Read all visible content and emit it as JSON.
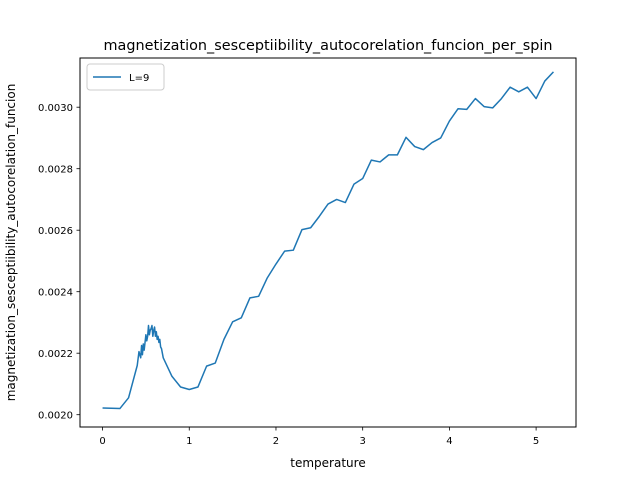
{
  "chart_data": {
    "type": "line",
    "title": "magnetization_sesceptiibility_autocorelation_funcion_per_spin",
    "xlabel": "temperature",
    "ylabel": "magnetization_sesceptiibility_autocorelation_funcion",
    "xlim": [
      -0.26,
      5.46
    ],
    "ylim": [
      0.00196,
      0.00316
    ],
    "xticks": [
      0,
      1,
      2,
      3,
      4,
      5
    ],
    "xtick_labels": [
      "0",
      "1",
      "2",
      "3",
      "4",
      "5"
    ],
    "yticks": [
      0.002,
      0.0022,
      0.0024,
      0.0026,
      0.0028,
      0.003
    ],
    "ytick_labels": [
      "0.0020",
      "0.0022",
      "0.0024",
      "0.0026",
      "0.0028",
      "0.0030"
    ],
    "grid": false,
    "legend_position": "upper-left",
    "series": [
      {
        "name": "L=9",
        "color": "#1f77b4",
        "x": [
          0.0,
          0.2,
          0.3,
          0.4,
          0.42,
          0.44,
          0.45,
          0.46,
          0.47,
          0.48,
          0.49,
          0.5,
          0.51,
          0.52,
          0.53,
          0.54,
          0.55,
          0.56,
          0.57,
          0.58,
          0.59,
          0.6,
          0.61,
          0.62,
          0.63,
          0.64,
          0.65,
          0.66,
          0.67,
          0.68,
          0.7,
          0.8,
          0.9,
          1.0,
          1.1,
          1.2,
          1.3,
          1.4,
          1.5,
          1.6,
          1.7,
          1.8,
          1.9,
          2.0,
          2.1,
          2.2,
          2.3,
          2.4,
          2.5,
          2.6,
          2.7,
          2.8,
          2.9,
          3.0,
          3.1,
          3.2,
          3.3,
          3.4,
          3.5,
          3.6,
          3.7,
          3.8,
          3.9,
          4.0,
          4.1,
          4.2,
          4.3,
          4.4,
          4.5,
          4.6,
          4.7,
          4.8,
          4.9,
          5.0,
          5.1,
          5.2
        ],
        "y": [
          0.002022,
          0.00202,
          0.002055,
          0.00216,
          0.002205,
          0.002185,
          0.002225,
          0.002195,
          0.00223,
          0.00221,
          0.002235,
          0.00226,
          0.00224,
          0.002255,
          0.00229,
          0.00226,
          0.002275,
          0.00228,
          0.00229,
          0.002255,
          0.002275,
          0.002285,
          0.002255,
          0.00227,
          0.002245,
          0.002255,
          0.002235,
          0.002245,
          0.00222,
          0.002215,
          0.002185,
          0.002125,
          0.00209,
          0.002082,
          0.00209,
          0.002158,
          0.002168,
          0.002245,
          0.002302,
          0.002315,
          0.00238,
          0.002385,
          0.002445,
          0.00249,
          0.002532,
          0.002535,
          0.002602,
          0.002608,
          0.002645,
          0.002685,
          0.0027,
          0.00269,
          0.00275,
          0.002768,
          0.002828,
          0.002822,
          0.002845,
          0.002845,
          0.002902,
          0.002872,
          0.002862,
          0.002885,
          0.0029,
          0.002955,
          0.002995,
          0.002993,
          0.003028,
          0.003002,
          0.002998,
          0.003028,
          0.003065,
          0.00305,
          0.003065,
          0.003028,
          0.003085,
          0.003115
        ]
      }
    ]
  }
}
